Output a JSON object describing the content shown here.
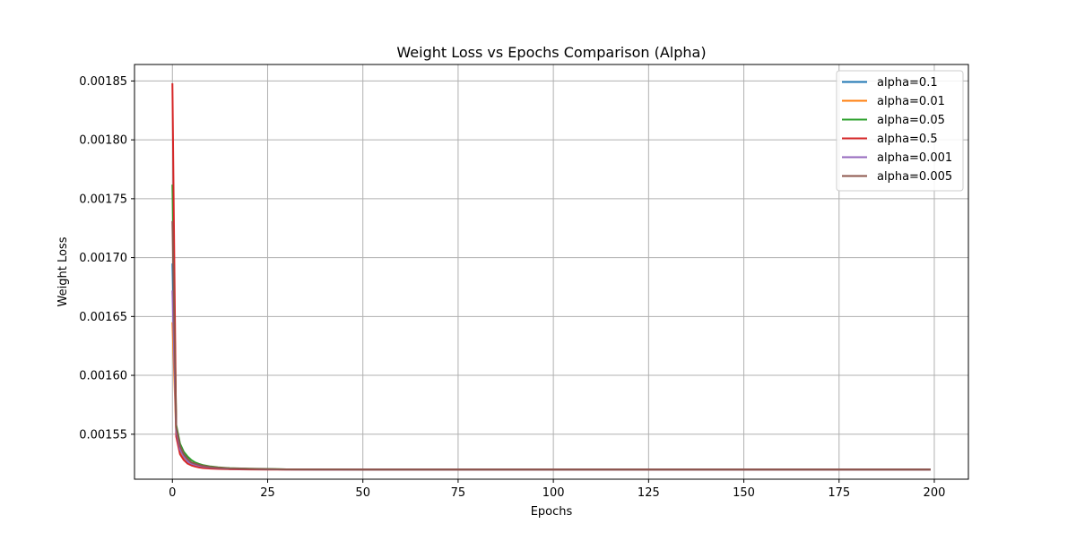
{
  "chart_data": {
    "type": "line",
    "title": "Weight Loss vs Epochs Comparison (Alpha)",
    "xlabel": "Epochs",
    "ylabel": "Weight Loss",
    "xlim": [
      -9.95,
      208.95
    ],
    "ylim": [
      0.0015118,
      0.001864
    ],
    "xticks": [
      0,
      25,
      50,
      75,
      100,
      125,
      150,
      175,
      200
    ],
    "yticks": [
      0.00155,
      0.0016,
      0.00165,
      0.0017,
      0.00175,
      0.0018,
      0.00185
    ],
    "xtick_labels": [
      "0",
      "25",
      "50",
      "75",
      "100",
      "125",
      "150",
      "175",
      "200"
    ],
    "ytick_labels": [
      "0.00155",
      "0.00160",
      "0.00165",
      "0.00170",
      "0.00175",
      "0.00180",
      "0.00185"
    ],
    "grid": true,
    "legend_position": "top-right",
    "x": [
      0,
      1,
      2,
      3,
      4,
      5,
      6,
      7,
      8,
      10,
      12,
      15,
      20,
      25,
      30,
      40,
      50,
      75,
      100,
      125,
      150,
      175,
      199
    ],
    "series": [
      {
        "name": "alpha=0.1",
        "color": "#1f77b4",
        "values": [
          0.001695,
          0.001555,
          0.001538,
          0.001531,
          0.001527,
          0.001525,
          0.001524,
          0.0015233,
          0.0015227,
          0.0015218,
          0.0015213,
          0.0015208,
          0.0015205,
          0.0015203,
          0.0015201,
          0.00152,
          0.00152,
          0.00152,
          0.00152,
          0.00152,
          0.00152,
          0.00152,
          0.00152
        ]
      },
      {
        "name": "alpha=0.01",
        "color": "#ff7f0e",
        "values": [
          0.001645,
          0.001551,
          0.001536,
          0.00153,
          0.001527,
          0.001525,
          0.001524,
          0.0015232,
          0.0015226,
          0.0015218,
          0.0015213,
          0.0015208,
          0.0015205,
          0.0015203,
          0.0015201,
          0.00152,
          0.00152,
          0.00152,
          0.00152,
          0.00152,
          0.00152,
          0.00152,
          0.00152
        ]
      },
      {
        "name": "alpha=0.05",
        "color": "#2ca02c",
        "values": [
          0.001762,
          0.001558,
          0.001542,
          0.001535,
          0.001531,
          0.001528,
          0.001526,
          0.0015248,
          0.0015238,
          0.0015226,
          0.0015219,
          0.0015212,
          0.0015207,
          0.0015205,
          0.0015202,
          0.0015201,
          0.00152,
          0.00152,
          0.00152,
          0.00152,
          0.00152,
          0.00152,
          0.00152
        ]
      },
      {
        "name": "alpha=0.5",
        "color": "#d62728",
        "values": [
          0.001848,
          0.001548,
          0.001533,
          0.001528,
          0.001525,
          0.0015235,
          0.0015225,
          0.0015218,
          0.0015213,
          0.0015208,
          0.0015205,
          0.0015203,
          0.0015201,
          0.00152,
          0.00152,
          0.00152,
          0.00152,
          0.00152,
          0.00152,
          0.00152,
          0.00152,
          0.00152,
          0.00152
        ]
      },
      {
        "name": "alpha=0.001",
        "color": "#9467bd",
        "values": [
          0.001672,
          0.001553,
          0.001537,
          0.001531,
          0.001527,
          0.001525,
          0.001524,
          0.0015232,
          0.0015226,
          0.0015218,
          0.0015213,
          0.0015208,
          0.0015205,
          0.0015203,
          0.0015201,
          0.00152,
          0.00152,
          0.00152,
          0.00152,
          0.00152,
          0.00152,
          0.00152,
          0.00152
        ]
      },
      {
        "name": "alpha=0.005",
        "color": "#8c564b",
        "values": [
          0.001731,
          0.001556,
          0.00154,
          0.001533,
          0.001529,
          0.001526,
          0.001525,
          0.001524,
          0.0015232,
          0.0015222,
          0.0015216,
          0.001521,
          0.0015206,
          0.0015204,
          0.0015202,
          0.0015201,
          0.00152,
          0.00152,
          0.00152,
          0.00152,
          0.00152,
          0.00152,
          0.00152
        ]
      }
    ]
  }
}
